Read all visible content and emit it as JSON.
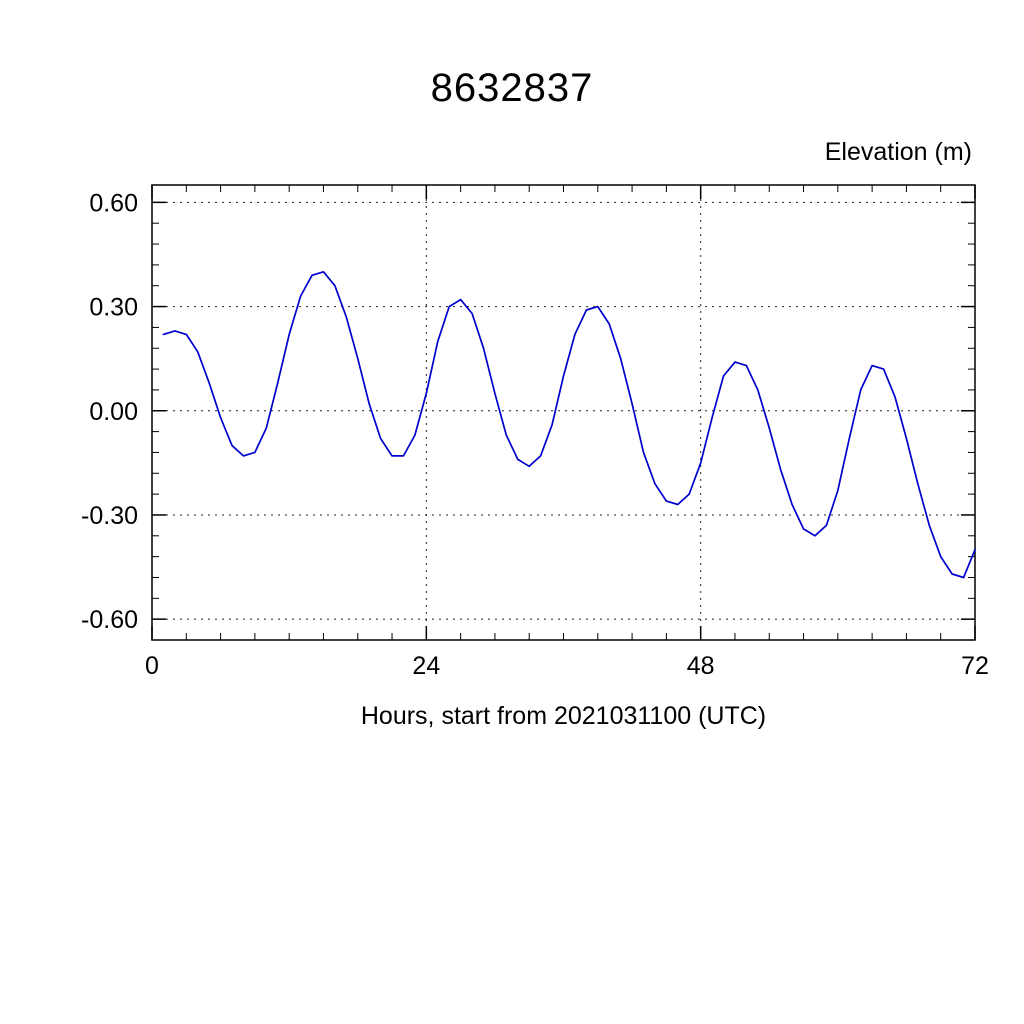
{
  "chart": {
    "title": "8632837",
    "ylabel": "Elevation (m)",
    "xlabel": "Hours, start from 2021031100 (UTC)"
  },
  "chart_data": {
    "type": "line",
    "title": "8632837",
    "subtitle": "",
    "xlabel": "Hours, start from 2021031100 (UTC)",
    "ylabel": "Elevation (m)",
    "series_name": "Elevation (m)",
    "line_color": "#0000cd",
    "grid": "dashed",
    "legend": "none",
    "xlim": [
      0,
      72
    ],
    "ylim": [
      -0.66,
      0.65
    ],
    "x_ticks": [
      0,
      24,
      48,
      72
    ],
    "x_tick_labels": [
      "0",
      "24",
      "48",
      "72"
    ],
    "y_ticks": [
      0.6,
      0.3,
      0.0,
      -0.3,
      -0.6
    ],
    "y_tick_labels": [
      "0.60",
      "0.30",
      "0.00",
      "-0.30",
      "-0.60"
    ],
    "x_gridlines": [
      24,
      48
    ],
    "y_gridlines": [
      0.6,
      0.3,
      0.0,
      -0.3,
      -0.6
    ],
    "x_minor_step": 3,
    "y_minor_step": 0.06,
    "x": [
      1,
      2,
      3,
      4,
      5,
      6,
      7,
      8,
      9,
      10,
      11,
      12,
      13,
      14,
      15,
      16,
      17,
      18,
      19,
      20,
      21,
      22,
      23,
      24,
      25,
      26,
      27,
      28,
      29,
      30,
      31,
      32,
      33,
      34,
      35,
      36,
      37,
      38,
      39,
      40,
      41,
      42,
      43,
      44,
      45,
      46,
      47,
      48,
      49,
      50,
      51,
      52,
      53,
      54,
      55,
      56,
      57,
      58,
      59,
      60,
      61,
      62,
      63,
      64,
      65,
      66,
      67,
      68,
      69,
      70,
      71,
      72
    ],
    "values": [
      0.22,
      0.23,
      0.22,
      0.17,
      0.08,
      -0.02,
      -0.1,
      -0.13,
      -0.12,
      -0.05,
      0.08,
      0.22,
      0.33,
      0.39,
      0.4,
      0.36,
      0.27,
      0.15,
      0.02,
      -0.08,
      -0.13,
      -0.13,
      -0.07,
      0.05,
      0.2,
      0.3,
      0.32,
      0.28,
      0.18,
      0.05,
      -0.07,
      -0.14,
      -0.16,
      -0.13,
      -0.04,
      0.1,
      0.22,
      0.29,
      0.3,
      0.25,
      0.15,
      0.02,
      -0.12,
      -0.21,
      -0.26,
      -0.27,
      -0.24,
      -0.15,
      -0.02,
      0.1,
      0.14,
      0.13,
      0.06,
      -0.05,
      -0.17,
      -0.27,
      -0.34,
      -0.36,
      -0.33,
      -0.23,
      -0.08,
      0.06,
      0.13,
      0.12,
      0.04,
      -0.08,
      -0.21,
      -0.33,
      -0.42,
      -0.47,
      -0.48,
      -0.4
    ]
  }
}
